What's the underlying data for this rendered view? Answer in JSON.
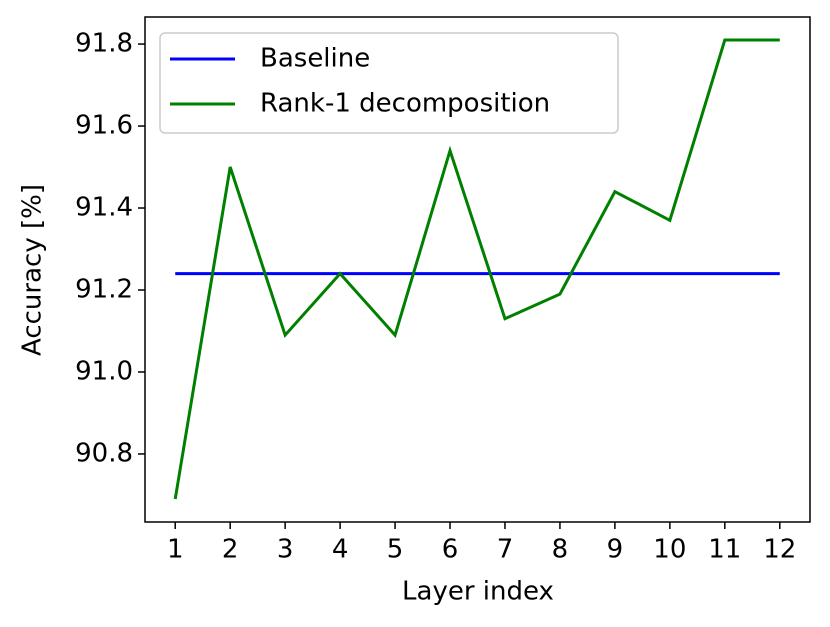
{
  "chart_data": {
    "type": "line",
    "x_label": "Layer index",
    "y_label": "Accuracy [%]",
    "x": [
      1,
      2,
      3,
      4,
      5,
      6,
      7,
      8,
      9,
      10,
      11,
      12
    ],
    "series": [
      {
        "name": "Baseline",
        "color": "#0000ff",
        "values": [
          91.24,
          91.24,
          91.24,
          91.24,
          91.24,
          91.24,
          91.24,
          91.24,
          91.24,
          91.24,
          91.24,
          91.24
        ]
      },
      {
        "name": "Rank-1 decomposition",
        "color": "#008000",
        "values": [
          90.69,
          91.5,
          91.09,
          91.24,
          91.09,
          91.54,
          91.13,
          91.19,
          91.44,
          91.37,
          91.81,
          91.81
        ]
      }
    ],
    "xlim": [
      0.45,
      12.55
    ],
    "xticks": [
      1,
      2,
      3,
      4,
      5,
      6,
      7,
      8,
      9,
      10,
      11,
      12
    ],
    "ylim": [
      90.634,
      91.866
    ],
    "yticks": [
      90.8,
      {
        "value": 91,
        "label": "91.0"
      },
      91.2,
      91.4,
      91.6,
      91.8
    ],
    "legend": "upper left",
    "grid": false
  }
}
